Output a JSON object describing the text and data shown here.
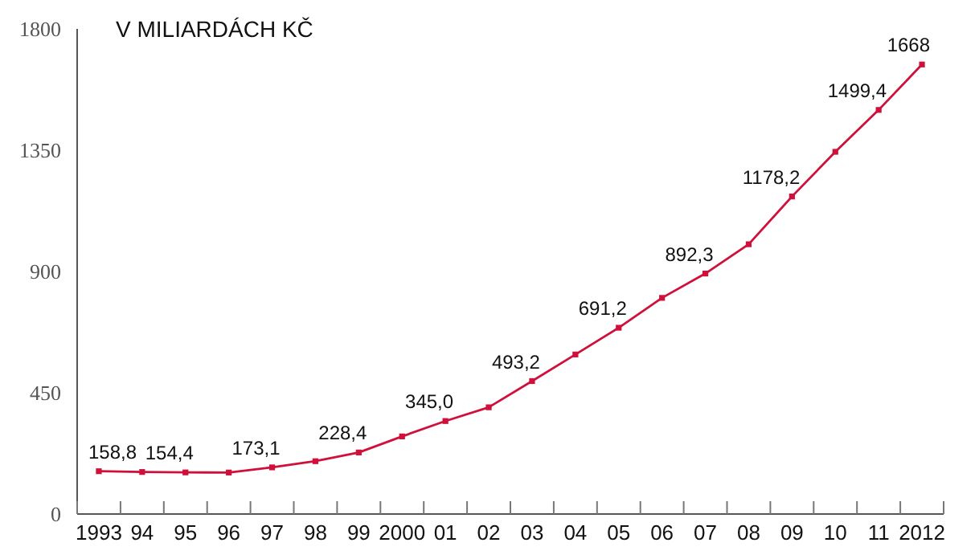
{
  "chart_data": {
    "type": "line",
    "title": "V MILIARDÁCH KČ",
    "categories": [
      "1993",
      "94",
      "95",
      "96",
      "97",
      "98",
      "99",
      "2000",
      "01",
      "02",
      "03",
      "04",
      "05",
      "06",
      "07",
      "08",
      "09",
      "10",
      "11",
      "2012"
    ],
    "series": [
      {
        "color": "#d0103a",
        "values": [
          158.8,
          156,
          154.4,
          154,
          173.1,
          196,
          228.4,
          288,
          345.0,
          396,
          493.2,
          592,
          691.2,
          802,
          892.3,
          1001,
          1178.2,
          1344,
          1499.4,
          1668
        ],
        "value_labels": [
          "158,8",
          null,
          "154,4",
          null,
          "173,1",
          null,
          "228,4",
          null,
          "345,0",
          null,
          "493,2",
          null,
          "691,2",
          null,
          "892,3",
          null,
          "1178,2",
          null,
          "1499,4",
          "1668"
        ]
      }
    ],
    "ylim": [
      0,
      1800
    ],
    "yticks": [
      0,
      450,
      900,
      1350,
      1800
    ],
    "marker": "square"
  }
}
